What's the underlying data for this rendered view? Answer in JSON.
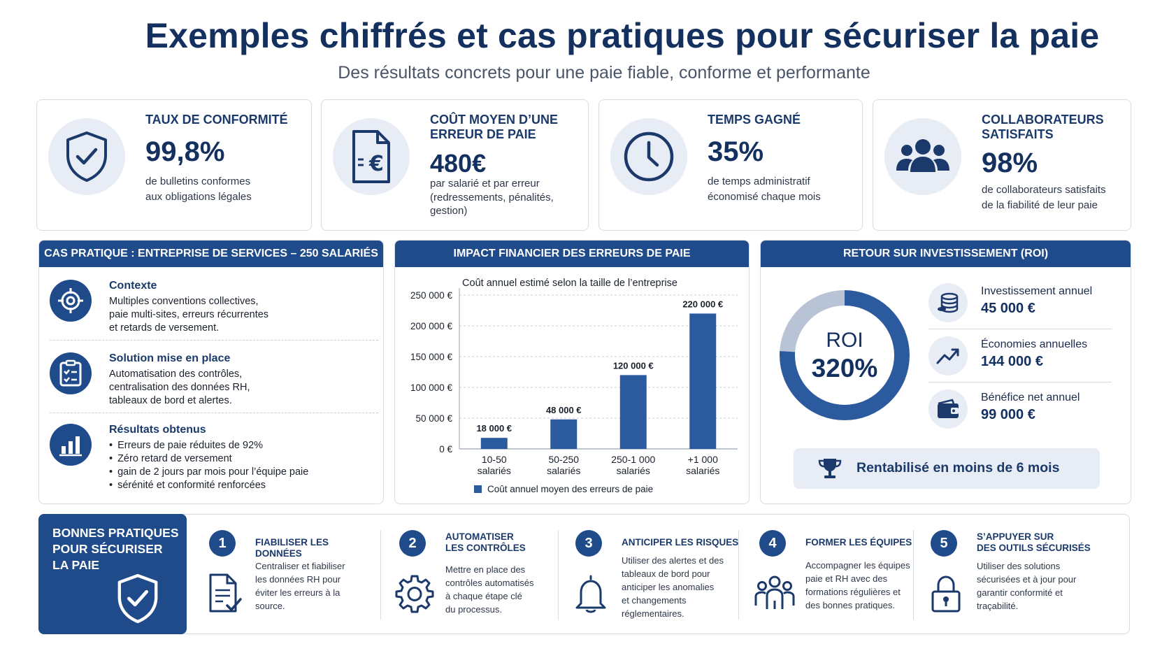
{
  "header": {
    "title": "Exemples chiffrés et cas pratiques pour sécuriser la paie",
    "subtitle": "Des résultats concrets pour une paie fiable, conforme et performante"
  },
  "kpis": [
    {
      "title": "TAUX DE CONFORMITÉ",
      "value": "99,8%",
      "desc": [
        "de bulletins conformes",
        "aux obligations légales"
      ],
      "icon": "shield-check-icon"
    },
    {
      "title": [
        "COÛT MOYEN D’UNE",
        "ERREUR DE PAIE"
      ],
      "value": "480€",
      "desc": [
        "par salarié et par erreur",
        "(redressements, pénalités,",
        "gestion)"
      ],
      "icon": "euro-document-icon"
    },
    {
      "title": "TEMPS GAGNÉ",
      "value": "35%",
      "desc": [
        "de temps administratif",
        "économisé chaque mois"
      ],
      "icon": "clock-icon"
    },
    {
      "title": [
        "COLLABORATEURS",
        "SATISFAITS"
      ],
      "value": "98%",
      "desc": [
        "de collaborateurs satisfaits",
        "de la fiabilité de leur paie"
      ],
      "icon": "team-icon"
    }
  ],
  "case_study": {
    "header": "CAS PRATIQUE : ENTREPRISE DE SERVICES – 250 SALARIÉS",
    "items": [
      {
        "title": "Contexte",
        "lines": [
          "Multiples conventions collectives,",
          "paie multi-sites, erreurs récurrentes",
          "et retards de versement."
        ],
        "icon": "target-icon"
      },
      {
        "title": "Solution mise en place",
        "lines": [
          "Automatisation des contrôles,",
          "centralisation des données RH,",
          "tableaux de bord et alertes."
        ],
        "icon": "checklist-icon"
      },
      {
        "title": "Résultats obtenus",
        "bullets": [
          "Erreurs de paie réduites de 92%",
          "Zéro retard de versement",
          "gain de 2 jours par mois pour l’équipe paie",
          "sérénité et conformité renforcées"
        ],
        "icon": "bar-chart-icon"
      }
    ]
  },
  "impact": {
    "header": "IMPACT FINANCIER DES ERREURS DE PAIE"
  },
  "chart_data": {
    "type": "bar",
    "title": "Coût annuel estimé selon la taille de l’entreprise",
    "categories": [
      [
        "10-50",
        "salariés"
      ],
      [
        "50-250",
        "salariés"
      ],
      [
        "250-1 000",
        "salariés"
      ],
      [
        "+1 000",
        "salariés"
      ]
    ],
    "values": [
      18000,
      48000,
      120000,
      220000
    ],
    "value_labels": [
      "18 000 €",
      "48 000 €",
      "120 000 €",
      "220 000 €"
    ],
    "yticks": [
      "0 €",
      "50 000 €",
      "100 000 €",
      "150 000 €",
      "200 000 €",
      "250 000 €"
    ],
    "ylim": [
      0,
      250000
    ],
    "legend": "Coût annuel moyen des erreurs de paie",
    "legend_position": "bottom",
    "grid": true,
    "color": "#2b5a9e"
  },
  "roi": {
    "header": "RETOUR SUR INVESTISSEMENT (ROI)",
    "donut_label": "ROI",
    "donut_value": "320%",
    "donut_fraction": 0.76,
    "colors": {
      "main": "#2b5a9e",
      "rest": "#b8c4d6"
    },
    "rows": [
      {
        "label": "Investissement annuel",
        "value": "45 000 €",
        "icon": "coins-icon"
      },
      {
        "label": "Économies annuelles",
        "value": "144 000 €",
        "icon": "trend-up-icon"
      },
      {
        "label": "Bénéfice net annuel",
        "value": "99 000 €",
        "icon": "wallet-icon"
      }
    ],
    "banner": "Rentabilisé en moins de 6 mois",
    "banner_icon": "trophy-icon"
  },
  "best_practices": {
    "title": [
      "BONNES PRATIQUES",
      "POUR SÉCURISER",
      "LA PAIE"
    ],
    "steps": [
      {
        "num": "1",
        "title": [
          "FIABILISER LES DONNÉES"
        ],
        "desc": [
          "Centraliser et fiabiliser",
          "les données RH pour",
          "éviter les erreurs à la",
          "source."
        ],
        "icon": "document-check-icon"
      },
      {
        "num": "2",
        "title": [
          "AUTOMATISER",
          "LES CONTRÔLES"
        ],
        "desc": [
          "Mettre en place des",
          "contrôles automatisés",
          "à chaque étape clé",
          "du processus."
        ],
        "icon": "gear-icon"
      },
      {
        "num": "3",
        "title": [
          "ANTICIPER LES RISQUES"
        ],
        "desc": [
          "Utiliser des alertes et des",
          "tableaux de bord pour",
          "anticiper les anomalies",
          "et changements",
          "réglementaires."
        ],
        "icon": "bell-icon"
      },
      {
        "num": "4",
        "title": [
          "FORMER LES ÉQUIPES"
        ],
        "desc": [
          "Accompagner les équipes",
          "paie et RH avec des",
          "formations régulières et",
          "des bonnes pratiques."
        ],
        "icon": "team-outline-icon"
      },
      {
        "num": "5",
        "title": [
          "S’APPUYER SUR",
          "DES OUTILS SÉCURISÉS"
        ],
        "desc": [
          "Utiliser des solutions",
          "sécurisées et à jour pour",
          "garantir conformité et",
          "traçabilité."
        ],
        "icon": "padlock-icon"
      }
    ]
  }
}
